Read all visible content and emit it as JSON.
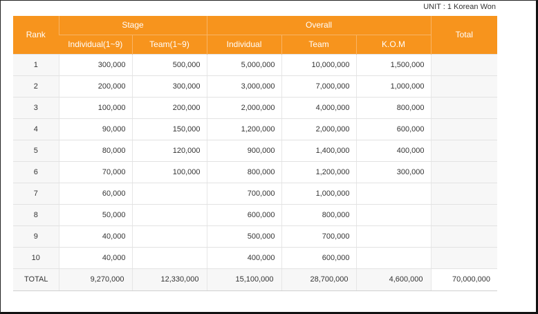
{
  "unit_label": "UNIT : 1 Korean Won",
  "header": {
    "rank": "Rank",
    "stage": "Stage",
    "overall": "Overall",
    "total": "Total",
    "stage_individual": "Individual(1~9)",
    "stage_team": "Team(1~9)",
    "overall_individual": "Individual",
    "overall_team": "Team",
    "overall_kom": "K.O.M"
  },
  "rows": [
    {
      "rank": "1",
      "stage_individual": "300,000",
      "stage_team": "500,000",
      "overall_individual": "5,000,000",
      "overall_team": "10,000,000",
      "kom": "1,500,000",
      "total": ""
    },
    {
      "rank": "2",
      "stage_individual": "200,000",
      "stage_team": "300,000",
      "overall_individual": "3,000,000",
      "overall_team": "7,000,000",
      "kom": "1,000,000",
      "total": ""
    },
    {
      "rank": "3",
      "stage_individual": "100,000",
      "stage_team": "200,000",
      "overall_individual": "2,000,000",
      "overall_team": "4,000,000",
      "kom": "800,000",
      "total": ""
    },
    {
      "rank": "4",
      "stage_individual": "90,000",
      "stage_team": "150,000",
      "overall_individual": "1,200,000",
      "overall_team": "2,000,000",
      "kom": "600,000",
      "total": ""
    },
    {
      "rank": "5",
      "stage_individual": "80,000",
      "stage_team": "120,000",
      "overall_individual": "900,000",
      "overall_team": "1,400,000",
      "kom": "400,000",
      "total": ""
    },
    {
      "rank": "6",
      "stage_individual": "70,000",
      "stage_team": "100,000",
      "overall_individual": "800,000",
      "overall_team": "1,200,000",
      "kom": "300,000",
      "total": ""
    },
    {
      "rank": "7",
      "stage_individual": "60,000",
      "stage_team": "",
      "overall_individual": "700,000",
      "overall_team": "1,000,000",
      "kom": "",
      "total": ""
    },
    {
      "rank": "8",
      "stage_individual": "50,000",
      "stage_team": "",
      "overall_individual": "600,000",
      "overall_team": "800,000",
      "kom": "",
      "total": ""
    },
    {
      "rank": "9",
      "stage_individual": "40,000",
      "stage_team": "",
      "overall_individual": "500,000",
      "overall_team": "700,000",
      "kom": "",
      "total": ""
    },
    {
      "rank": "10",
      "stage_individual": "40,000",
      "stage_team": "",
      "overall_individual": "400,000",
      "overall_team": "600,000",
      "kom": "",
      "total": ""
    }
  ],
  "totals": {
    "label": "TOTAL",
    "stage_individual": "9,270,000",
    "stage_team": "12,330,000",
    "overall_individual": "15,100,000",
    "overall_team": "28,700,000",
    "kom": "4,600,000",
    "grand_total": "70,000,000"
  },
  "colors": {
    "header_orange": "#f7941d",
    "header_text": "#ffffff"
  }
}
